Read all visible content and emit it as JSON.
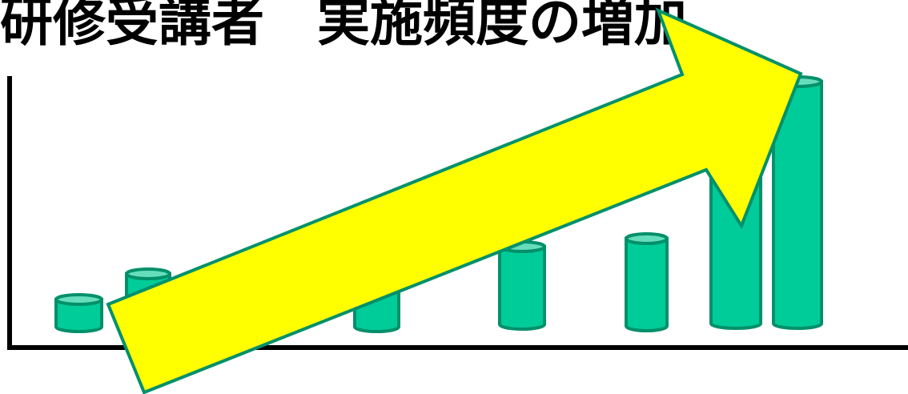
{
  "title": "研修受講者　実施頻度の増加"
}
